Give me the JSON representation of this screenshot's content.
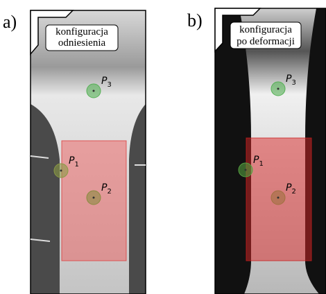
{
  "panels": [
    {
      "label": "a)",
      "caption": [
        "konfiguracja",
        "odniesienia"
      ],
      "points": [
        {
          "letter": "P",
          "index": "3"
        },
        {
          "letter": "P",
          "index": "1"
        },
        {
          "letter": "P",
          "index": "2"
        }
      ]
    },
    {
      "label": "b)",
      "caption": [
        "konfiguracja",
        "po deformacji"
      ],
      "points": [
        {
          "letter": "P",
          "index": "3"
        },
        {
          "letter": "P",
          "index": "1"
        },
        {
          "letter": "P",
          "index": "2"
        }
      ]
    }
  ]
}
